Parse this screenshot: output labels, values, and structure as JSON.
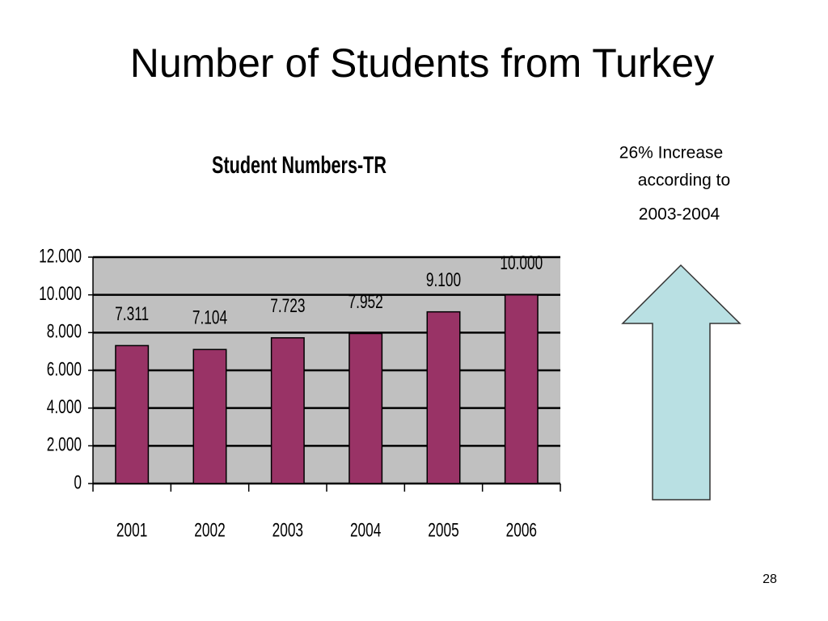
{
  "slide": {
    "title": "Number of Students from Turkey",
    "note": [
      "26%  Increase",
      "according to",
      "2003-2004"
    ],
    "page_number": "28"
  },
  "chart_data": {
    "type": "bar",
    "title": "Student Numbers-TR",
    "categories": [
      "2001",
      "2002",
      "2003",
      "2004",
      "2005",
      "2006"
    ],
    "values": [
      7311,
      7104,
      7723,
      7952,
      9100,
      10000
    ],
    "value_labels": [
      "7.311",
      "7.104",
      "7.723",
      "7.952",
      "9.100",
      "10.000"
    ],
    "color": "#993366",
    "ylim": [
      0,
      12000
    ],
    "yticks": [
      0,
      {
        "value": 2000,
        "label": "2.000"
      },
      {
        "value": 4000,
        "label": "4.000"
      },
      {
        "value": 6000,
        "label": "6.000"
      },
      {
        "value": 8000,
        "label": "8.000"
      },
      {
        "value": 10000,
        "label": "10.000"
      },
      {
        "value": 12000,
        "label": "12.000"
      }
    ],
    "grid": true
  }
}
